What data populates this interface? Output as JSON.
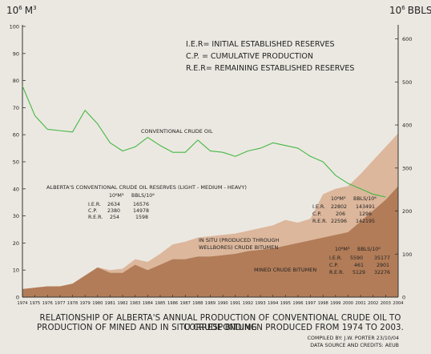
{
  "axes": {
    "left_unit_base": "10",
    "left_unit_exp": "6",
    "left_unit_name": "M",
    "left_unit_exp2": "3",
    "right_unit_base": "10",
    "right_unit_exp": "6",
    "right_unit_name": "BBLS",
    "left_ticks": [
      "0",
      "10",
      "20",
      "30",
      "40",
      "50",
      "60",
      "70",
      "80",
      "90",
      "100"
    ],
    "right_ticks": [
      "0",
      "100",
      "200",
      "300",
      "400",
      "500",
      "600"
    ]
  },
  "definitions": [
    "I.E.R= INITIAL ESTABLISHED RESERVES",
    "C.P. = CUMULATIVE PRODUCTION",
    "R.E.R= REMAINING ESTABLISHED RESERVES"
  ],
  "series_labels": {
    "crude": "CONVENTIONAL CRUDE OIL",
    "insitu_1": "IN SITU (PRODUCED THROUGH",
    "insitu_2": "WELLBORES) CRUDE BITUMEN",
    "mined": "MINED CRUDE BITUMEN"
  },
  "reserves_title": "ALBERTA'S CONVENTIONAL CRUDE OIL RESERVES (LIGHT - MEDIUM - HEAVY)",
  "reserve_tables": [
    {
      "unit1": "10⁶M³",
      "unit2": "BBLS/10⁶",
      "rows": [
        {
          "label": "I.E.R.",
          "v1": "2634",
          "v2": "16576"
        },
        {
          "label": "C.P.",
          "v1": "2380",
          "v2": "14978"
        },
        {
          "label": "R.E.R.",
          "v1": "254",
          "v2": "1598"
        }
      ]
    },
    {
      "unit1": "10⁶M³",
      "unit2": "BBLS/10⁶",
      "rows": [
        {
          "label": "I.E.R.",
          "v1": "22802",
          "v2": "143491"
        },
        {
          "label": "C.P.",
          "v1": "206",
          "v2": "1296"
        },
        {
          "label": "R.E.R.",
          "v1": "22596",
          "v2": "142195"
        }
      ]
    },
    {
      "unit1": "10⁶M³",
      "unit2": "BBLS/10⁶",
      "rows": [
        {
          "label": "I.E.R.",
          "v1": "5590",
          "v2": "35177"
        },
        {
          "label": "C.P.",
          "v1": "461",
          "v2": "2901"
        },
        {
          "label": "R.E.R.",
          "v1": "5129",
          "v2": "32276"
        }
      ]
    }
  ],
  "caption": {
    "line1": "RELATIONSHIP OF ALBERTA'S ANNUAL PRODUCTION OF CONVENTIONAL CRUDE OIL TO CORRESPONDING",
    "line2": "PRODUCTION OF MINED AND IN SITU CRUDE BITUMEN PRODUCED FROM 1974 TO 2003."
  },
  "credits": {
    "line1": "COMPILED BY: J.W. PORTER  23/10/04",
    "line2": "DATA SOURCE AND CREDITS: AEUB"
  },
  "colors": {
    "background": "#ebe8e1",
    "insitu_fill": "#dcb79c",
    "mined_fill": "#b27c58",
    "crude_line": "#45b845",
    "axis": "#333333"
  },
  "chart_data": {
    "type": "area",
    "x": [
      "1974",
      "1975",
      "1976",
      "1977",
      "1978",
      "1979",
      "1980",
      "1981",
      "1982",
      "1983",
      "1984",
      "1985",
      "1986",
      "1987",
      "1988",
      "1989",
      "1990",
      "1991",
      "1992",
      "1993",
      "1994",
      "1995",
      "1996",
      "1997",
      "1998",
      "1999",
      "2000",
      "2001",
      "2002",
      "2003",
      "2004"
    ],
    "ylim": [
      0,
      100
    ],
    "y2lim": [
      0,
      629
    ],
    "series": [
      {
        "name": "CONVENTIONAL CRUDE OIL",
        "kind": "line",
        "values": [
          78,
          67,
          62,
          61.5,
          61,
          69,
          64,
          57,
          54,
          55.5,
          59,
          56,
          53.5,
          53.5,
          58,
          54,
          53.5,
          52,
          54,
          55,
          57,
          56,
          55,
          52,
          50,
          45,
          42,
          40,
          38,
          37,
          null
        ]
      },
      {
        "name": "MINED CRUDE BITUMEN",
        "kind": "area",
        "values": [
          3,
          3.5,
          4,
          4,
          5,
          8,
          11,
          9,
          9,
          12,
          10,
          12,
          14,
          14,
          15,
          15,
          15.5,
          16,
          17,
          17.5,
          18,
          19,
          20,
          21,
          22,
          23,
          24,
          28,
          32,
          36,
          41
        ]
      },
      {
        "name": "IN SITU (PRODUCED THROUGH WELLBORES) CRUDE BITUMEN",
        "kind": "area",
        "values": [
          0,
          0,
          0,
          0,
          0,
          0,
          0,
          1,
          1.5,
          2,
          3,
          4,
          5.5,
          6.5,
          7,
          7.5,
          7.5,
          7.5,
          7.5,
          8,
          8.5,
          9.5,
          7.5,
          8,
          16,
          17,
          17,
          17.5,
          18.5,
          19.5,
          19.5
        ]
      }
    ]
  }
}
